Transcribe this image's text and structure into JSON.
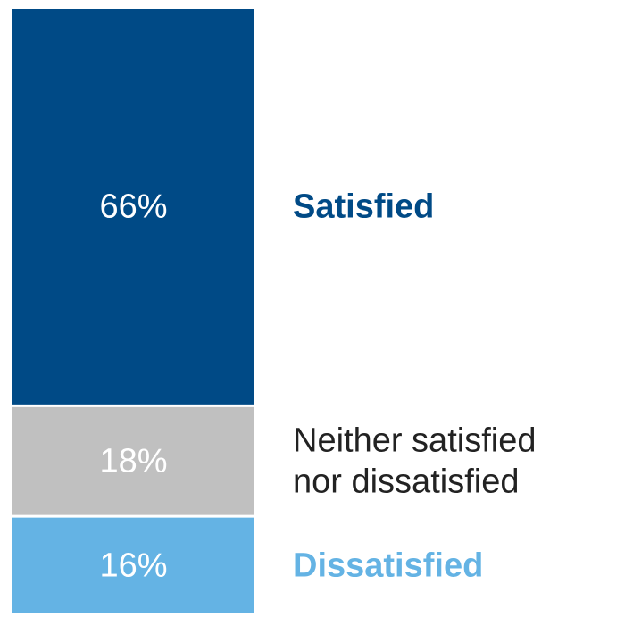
{
  "chart_data": {
    "type": "bar",
    "stacked": true,
    "orientation": "vertical",
    "unit": "%",
    "categories": [
      "Satisfied",
      "Neither satisfied nor dissatisfied",
      "Dissatisfied"
    ],
    "values": [
      66,
      18,
      16
    ],
    "value_labels": [
      "66%",
      "18%",
      "16%"
    ],
    "category_labels": [
      [
        "Satisfied"
      ],
      [
        "Neither satisfied",
        "nor dissatisfied"
      ],
      [
        "Dissatisfied"
      ]
    ],
    "colors": [
      "#004a86",
      "#c0c0c0",
      "#64b3e4"
    ],
    "label_colors": [
      "#004a86",
      "#222222",
      "#64b3e4"
    ],
    "label_bold": [
      true,
      false,
      true
    ],
    "value_text_color": "#ffffff",
    "title": "",
    "xlabel": "",
    "ylabel": "",
    "ylim": [
      0,
      100
    ],
    "grid": false,
    "legend": "right"
  }
}
